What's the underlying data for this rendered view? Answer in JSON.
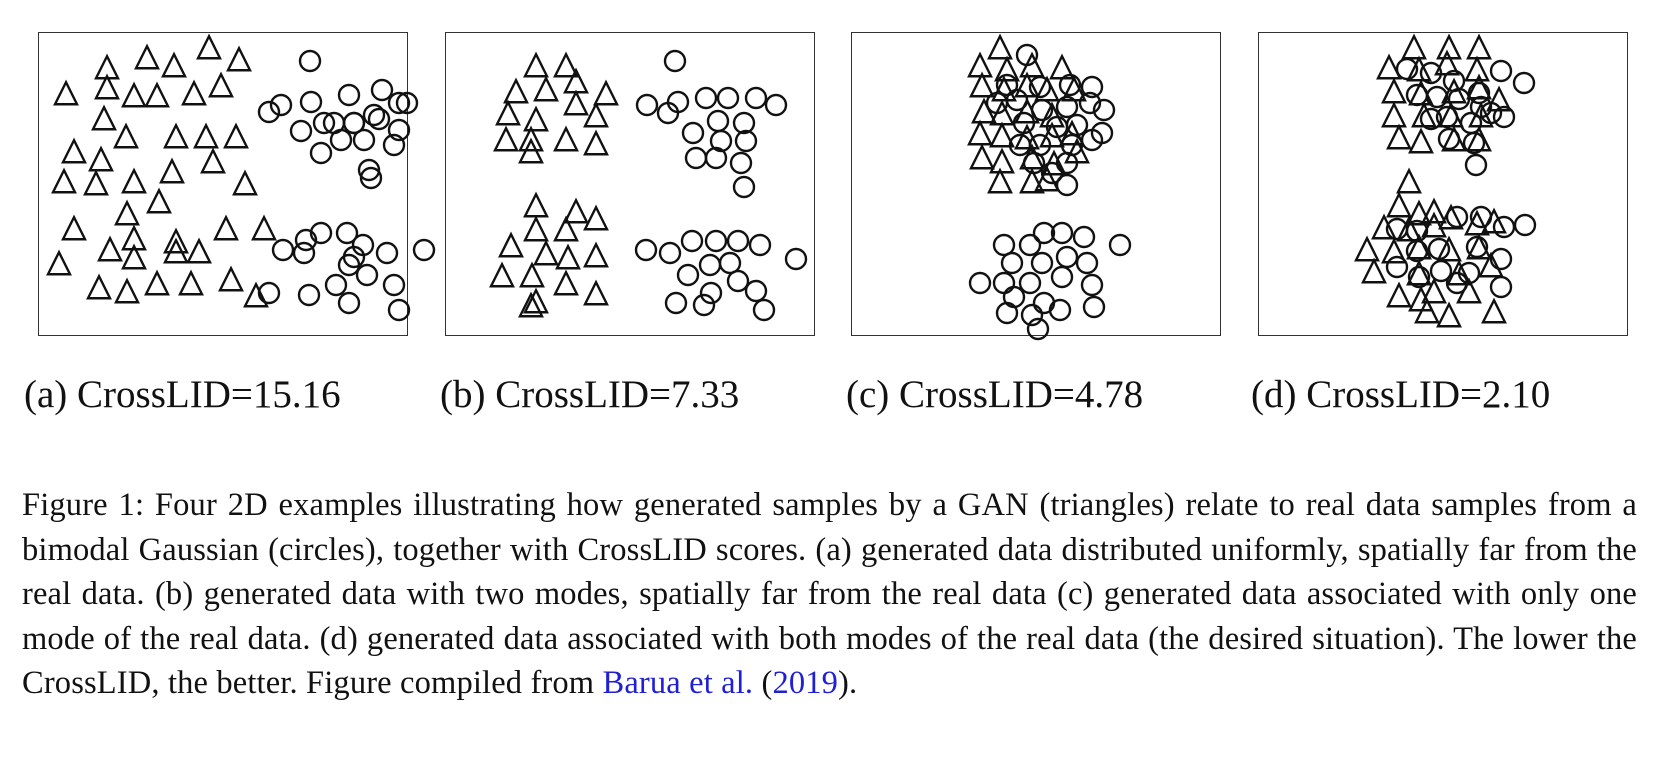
{
  "panels": [
    {
      "id": "a",
      "caption": "(a) CrossLID=15.16",
      "triangles": [
        [
          58,
          24
        ],
        [
          98,
          14
        ],
        [
          125,
          22
        ],
        [
          160,
          4
        ],
        [
          190,
          16
        ],
        [
          17,
          50
        ],
        [
          58,
          44
        ],
        [
          85,
          52
        ],
        [
          108,
          52
        ],
        [
          145,
          50
        ],
        [
          172,
          42
        ],
        [
          55,
          75
        ],
        [
          77,
          93
        ],
        [
          127,
          93
        ],
        [
          157,
          93
        ],
        [
          187,
          93
        ],
        [
          25,
          108
        ],
        [
          52,
          116
        ],
        [
          164,
          118
        ],
        [
          15,
          138
        ],
        [
          47,
          140
        ],
        [
          85,
          138
        ],
        [
          123,
          128
        ],
        [
          196,
          140
        ],
        [
          78,
          170
        ],
        [
          110,
          158
        ],
        [
          25,
          185
        ],
        [
          85,
          195
        ],
        [
          61,
          206
        ],
        [
          127,
          198
        ],
        [
          177,
          185
        ],
        [
          215,
          185
        ],
        [
          10,
          220
        ],
        [
          85,
          214
        ],
        [
          127,
          208
        ],
        [
          150,
          208
        ],
        [
          50,
          244
        ],
        [
          78,
          248
        ],
        [
          108,
          240
        ],
        [
          142,
          240
        ],
        [
          182,
          236
        ],
        [
          207,
          252
        ]
      ],
      "circles": [
        [
          261,
          16
        ],
        [
          232,
          60
        ],
        [
          262,
          57
        ],
        [
          220,
          67
        ],
        [
          252,
          86
        ],
        [
          275,
          78
        ],
        [
          305,
          78
        ],
        [
          330,
          74
        ],
        [
          350,
          85
        ],
        [
          358,
          58
        ],
        [
          333,
          45
        ],
        [
          300,
          50
        ],
        [
          272,
          108
        ],
        [
          292,
          95
        ],
        [
          315,
          95
        ],
        [
          320,
          125
        ],
        [
          345,
          100
        ],
        [
          350,
          58
        ],
        [
          325,
          70
        ],
        [
          285,
          78
        ],
        [
          305,
          78
        ],
        [
          322,
          133
        ],
        [
          234,
          205
        ],
        [
          257,
          195
        ],
        [
          255,
          208
        ],
        [
          272,
          188
        ],
        [
          298,
          188
        ],
        [
          314,
          200
        ],
        [
          338,
          208
        ],
        [
          375,
          205
        ],
        [
          345,
          240
        ],
        [
          300,
          220
        ],
        [
          318,
          230
        ],
        [
          287,
          240
        ],
        [
          260,
          250
        ],
        [
          300,
          258
        ],
        [
          350,
          265
        ],
        [
          220,
          248
        ],
        [
          305,
          212
        ]
      ]
    },
    {
      "id": "b",
      "caption": "(b) CrossLID=7.33",
      "triangles": [
        [
          80,
          22
        ],
        [
          110,
          22
        ],
        [
          120,
          38
        ],
        [
          150,
          50
        ],
        [
          60,
          48
        ],
        [
          90,
          46
        ],
        [
          120,
          60
        ],
        [
          140,
          72
        ],
        [
          52,
          70
        ],
        [
          80,
          76
        ],
        [
          50,
          96
        ],
        [
          75,
          96
        ],
        [
          110,
          96
        ],
        [
          140,
          100
        ],
        [
          75,
          108
        ],
        [
          80,
          162
        ],
        [
          120,
          168
        ],
        [
          140,
          175
        ],
        [
          110,
          186
        ],
        [
          80,
          186
        ],
        [
          55,
          202
        ],
        [
          90,
          210
        ],
        [
          112,
          214
        ],
        [
          140,
          212
        ],
        [
          46,
          232
        ],
        [
          76,
          232
        ],
        [
          110,
          240
        ],
        [
          140,
          250
        ],
        [
          80,
          258
        ],
        [
          75,
          262
        ]
      ],
      "circles": [
        [
          219,
          16
        ],
        [
          191,
          60
        ],
        [
          222,
          57
        ],
        [
          212,
          68
        ],
        [
          250,
          53
        ],
        [
          272,
          53
        ],
        [
          300,
          53
        ],
        [
          320,
          60
        ],
        [
          288,
          78
        ],
        [
          262,
          76
        ],
        [
          237,
          88
        ],
        [
          265,
          96
        ],
        [
          290,
          96
        ],
        [
          240,
          113
        ],
        [
          260,
          113
        ],
        [
          285,
          118
        ],
        [
          288,
          142
        ],
        [
          190,
          205
        ],
        [
          214,
          208
        ],
        [
          236,
          196
        ],
        [
          260,
          196
        ],
        [
          282,
          196
        ],
        [
          304,
          200
        ],
        [
          274,
          218
        ],
        [
          254,
          220
        ],
        [
          232,
          230
        ],
        [
          255,
          248
        ],
        [
          282,
          236
        ],
        [
          300,
          246
        ],
        [
          220,
          258
        ],
        [
          248,
          260
        ],
        [
          308,
          265
        ],
        [
          340,
          214
        ]
      ]
    },
    {
      "id": "c",
      "caption": "(c) CrossLID=4.78",
      "triangles": [
        [
          138,
          4
        ],
        [
          118,
          22
        ],
        [
          145,
          26
        ],
        [
          170,
          22
        ],
        [
          200,
          24
        ],
        [
          120,
          42
        ],
        [
          142,
          46
        ],
        [
          165,
          42
        ],
        [
          185,
          46
        ],
        [
          212,
          46
        ],
        [
          122,
          68
        ],
        [
          140,
          70
        ],
        [
          165,
          68
        ],
        [
          190,
          72
        ],
        [
          118,
          90
        ],
        [
          140,
          92
        ],
        [
          165,
          94
        ],
        [
          190,
          92
        ],
        [
          210,
          90
        ],
        [
          120,
          114
        ],
        [
          140,
          118
        ],
        [
          170,
          114
        ],
        [
          192,
          120
        ],
        [
          215,
          108
        ],
        [
          138,
          138
        ],
        [
          170,
          138
        ],
        [
          185,
          136
        ]
      ],
      "circles": [
        [
          165,
          10
        ],
        [
          145,
          40
        ],
        [
          178,
          42
        ],
        [
          208,
          40
        ],
        [
          230,
          42
        ],
        [
          135,
          58
        ],
        [
          155,
          55
        ],
        [
          180,
          65
        ],
        [
          205,
          62
        ],
        [
          228,
          58
        ],
        [
          242,
          65
        ],
        [
          162,
          78
        ],
        [
          195,
          82
        ],
        [
          215,
          80
        ],
        [
          240,
          88
        ],
        [
          158,
          100
        ],
        [
          178,
          100
        ],
        [
          210,
          100
        ],
        [
          230,
          95
        ],
        [
          172,
          118
        ],
        [
          205,
          118
        ],
        [
          190,
          128
        ],
        [
          205,
          140
        ],
        [
          168,
          200
        ],
        [
          182,
          188
        ],
        [
          200,
          188
        ],
        [
          222,
          192
        ],
        [
          258,
          200
        ],
        [
          142,
          200
        ],
        [
          150,
          218
        ],
        [
          180,
          218
        ],
        [
          205,
          212
        ],
        [
          225,
          218
        ],
        [
          118,
          238
        ],
        [
          142,
          238
        ],
        [
          168,
          238
        ],
        [
          200,
          232
        ],
        [
          230,
          240
        ],
        [
          152,
          252
        ],
        [
          182,
          258
        ],
        [
          145,
          268
        ],
        [
          170,
          270
        ],
        [
          198,
          265
        ],
        [
          232,
          262
        ],
        [
          176,
          284
        ]
      ]
    },
    {
      "id": "d",
      "caption": "(d) CrossLID=2.10",
      "triangles": [
        [
          145,
          4
        ],
        [
          180,
          4
        ],
        [
          210,
          4
        ],
        [
          120,
          24
        ],
        [
          150,
          26
        ],
        [
          178,
          20
        ],
        [
          208,
          26
        ],
        [
          125,
          48
        ],
        [
          152,
          50
        ],
        [
          185,
          48
        ],
        [
          210,
          44
        ],
        [
          230,
          56
        ],
        [
          125,
          72
        ],
        [
          155,
          72
        ],
        [
          182,
          72
        ],
        [
          212,
          72
        ],
        [
          130,
          94
        ],
        [
          152,
          98
        ],
        [
          185,
          96
        ],
        [
          210,
          96
        ],
        [
          140,
          138
        ],
        [
          130,
          162
        ],
        [
          150,
          170
        ],
        [
          165,
          168
        ],
        [
          115,
          184
        ],
        [
          140,
          186
        ],
        [
          165,
          182
        ],
        [
          182,
          174
        ],
        [
          208,
          180
        ],
        [
          225,
          178
        ],
        [
          98,
          206
        ],
        [
          125,
          208
        ],
        [
          150,
          204
        ],
        [
          180,
          206
        ],
        [
          210,
          204
        ],
        [
          105,
          228
        ],
        [
          150,
          230
        ],
        [
          190,
          230
        ],
        [
          222,
          222
        ],
        [
          130,
          252
        ],
        [
          165,
          248
        ],
        [
          200,
          248
        ],
        [
          158,
          268
        ],
        [
          180,
          272
        ],
        [
          152,
          256
        ],
        [
          225,
          268
        ]
      ],
      "circles": [
        [
          138,
          24
        ],
        [
          162,
          28
        ],
        [
          185,
          36
        ],
        [
          210,
          48
        ],
        [
          232,
          26
        ],
        [
          255,
          38
        ],
        [
          148,
          50
        ],
        [
          168,
          52
        ],
        [
          190,
          54
        ],
        [
          212,
          62
        ],
        [
          235,
          72
        ],
        [
          178,
          72
        ],
        [
          202,
          78
        ],
        [
          222,
          68
        ],
        [
          162,
          74
        ],
        [
          180,
          94
        ],
        [
          205,
          98
        ],
        [
          207,
          120
        ],
        [
          128,
          184
        ],
        [
          148,
          186
        ],
        [
          188,
          172
        ],
        [
          212,
          172
        ],
        [
          235,
          182
        ],
        [
          148,
          206
        ],
        [
          170,
          204
        ],
        [
          208,
          202
        ],
        [
          232,
          214
        ],
        [
          256,
          180
        ],
        [
          128,
          222
        ],
        [
          150,
          232
        ],
        [
          172,
          226
        ],
        [
          200,
          228
        ],
        [
          232,
          242
        ],
        [
          188,
          238
        ]
      ]
    }
  ],
  "caption": {
    "text": "Figure 1: Four 2D examples illustrating how generated samples by a GAN (triangles) relate to real data samples from a bimodal Gaussian (circles), together with CrossLID scores. (a) generated data distributed uniformly, spatially far from the real data. (b) generated data with two modes, spatially far from the real data (c) generated data associated with only one mode of the real data. (d) generated data associated with both modes of the real data (the desired situation). The lower the CrossLID, the better. Figure compiled from ",
    "cite_authors": "Barua et al.",
    "cite_open": " (",
    "cite_year": "2019",
    "cite_close": ")."
  }
}
